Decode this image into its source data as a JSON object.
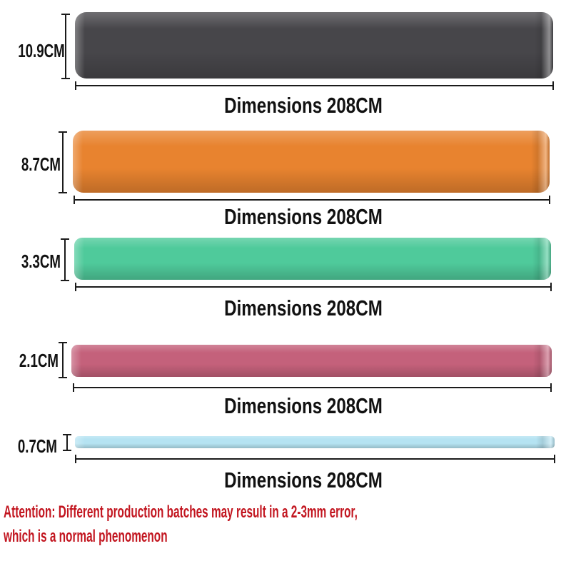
{
  "page": {
    "background": "#FFFFFF"
  },
  "bands": [
    {
      "name": "black",
      "color": "#47464A",
      "width_label": "10.9CM",
      "length_label": "Dimensions 208CM"
    },
    {
      "name": "orange",
      "color": "#E8832F",
      "width_label": "8.7CM",
      "length_label": "Dimensions 208CM"
    },
    {
      "name": "green",
      "color": "#4FCA9B",
      "width_label": "3.3CM",
      "length_label": "Dimensions 208CM"
    },
    {
      "name": "pink",
      "color": "#C4617B",
      "width_label": "2.1CM",
      "length_label": "Dimensions 208CM"
    },
    {
      "name": "blue",
      "color": "#B5E3F2",
      "width_label": "0.7CM",
      "length_label": "Dimensions 208CM"
    }
  ],
  "attention": {
    "color": "#C2151F",
    "line1": "Attention: Different production batches may result in a 2-3mm error,",
    "line2": "which is a normal phenomenon"
  }
}
